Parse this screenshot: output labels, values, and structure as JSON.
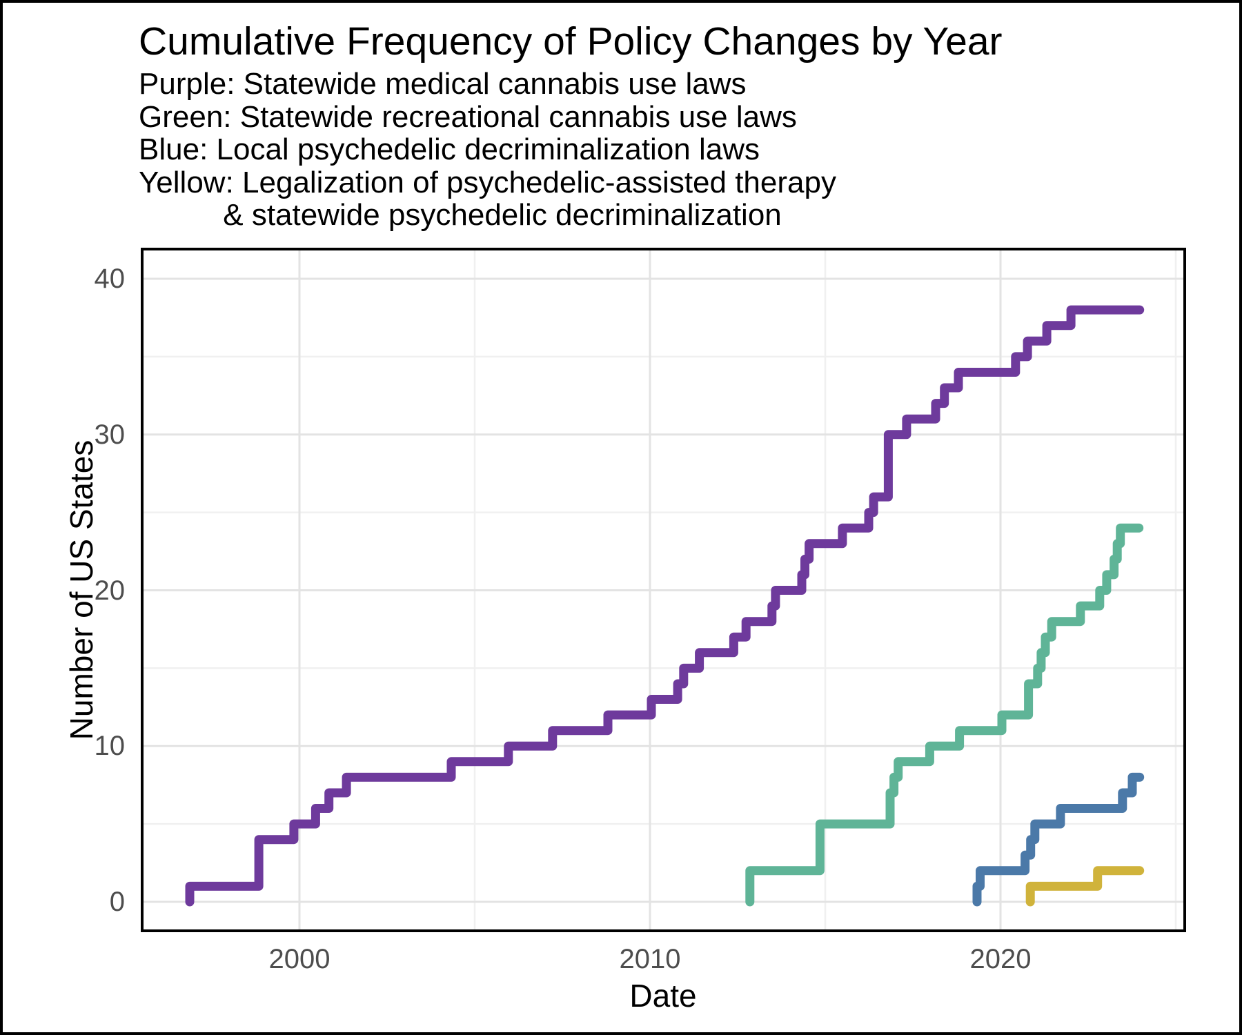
{
  "title": "Cumulative Frequency of Policy Changes by Year",
  "subtitle_lines": [
    "Purple: Statewide medical cannabis use laws",
    "Green: Statewide recreational cannabis use laws",
    "Blue: Local psychedelic decriminalization laws",
    "Yellow: Legalization of psychedelic-assisted therapy",
    "          & statewide psychedelic decriminalization"
  ],
  "colors": {
    "purple": "#6E3A9C",
    "green": "#5FB497",
    "blue": "#4B79A8",
    "yellow": "#D0B33B",
    "grid_major": "#E3E3E3",
    "grid_minor": "#F0F0F0",
    "axis_text": "#4D4D4D",
    "panel_border": "#000000"
  },
  "chart_data": {
    "type": "line",
    "subtype": "cumulative-step",
    "title": "Cumulative Frequency of Policy Changes by Year",
    "xlabel": "Date",
    "ylabel": "Number of US States",
    "xlim": [
      1995.5,
      2025.3
    ],
    "ylim": [
      -1.9,
      41.9
    ],
    "x_ticks": [
      2000,
      2010,
      2020
    ],
    "x_minor_gridlines": [
      2005,
      2015,
      2025
    ],
    "y_ticks": [
      0,
      10,
      20,
      30,
      40
    ],
    "y_minor_gridlines": [
      5,
      15,
      25,
      35
    ],
    "grid": "on",
    "legend_position": "in-subtitle",
    "series": [
      {
        "id": "medical-cannabis",
        "name": "Statewide medical cannabis use laws",
        "color_label": "Purple",
        "color": "#6E3A9C",
        "starts_at_zero_year": 1996.87,
        "end_year": 2023.97,
        "final_value": 38,
        "steps": [
          [
            1996.87,
            1
          ],
          [
            1998.84,
            4
          ],
          [
            1999.84,
            5
          ],
          [
            2000.46,
            6
          ],
          [
            2000.84,
            7
          ],
          [
            2001.34,
            8
          ],
          [
            2004.33,
            9
          ],
          [
            2005.96,
            10
          ],
          [
            2007.22,
            11
          ],
          [
            2008.8,
            12
          ],
          [
            2010.04,
            13
          ],
          [
            2010.79,
            14
          ],
          [
            2010.96,
            15
          ],
          [
            2011.41,
            16
          ],
          [
            2012.39,
            17
          ],
          [
            2012.74,
            18
          ],
          [
            2013.48,
            19
          ],
          [
            2013.58,
            20
          ],
          [
            2014.33,
            21
          ],
          [
            2014.42,
            22
          ],
          [
            2014.54,
            23
          ],
          [
            2015.49,
            24
          ],
          [
            2016.24,
            25
          ],
          [
            2016.38,
            26
          ],
          [
            2016.8,
            30
          ],
          [
            2017.32,
            31
          ],
          [
            2018.15,
            32
          ],
          [
            2018.4,
            33
          ],
          [
            2018.8,
            34
          ],
          [
            2020.43,
            35
          ],
          [
            2020.77,
            36
          ],
          [
            2021.32,
            37
          ],
          [
            2022.01,
            38
          ]
        ]
      },
      {
        "id": "recreational-cannabis",
        "name": "Statewide recreational cannabis use laws",
        "color_label": "Green",
        "color": "#5FB497",
        "starts_at_zero_year": 2012.85,
        "end_year": 2023.95,
        "final_value": 24,
        "steps": [
          [
            2012.85,
            2
          ],
          [
            2014.85,
            5
          ],
          [
            2016.85,
            7
          ],
          [
            2016.96,
            8
          ],
          [
            2017.08,
            9
          ],
          [
            2017.98,
            10
          ],
          [
            2018.83,
            11
          ],
          [
            2020.04,
            12
          ],
          [
            2020.8,
            14
          ],
          [
            2021.06,
            15
          ],
          [
            2021.16,
            16
          ],
          [
            2021.28,
            17
          ],
          [
            2021.46,
            18
          ],
          [
            2022.28,
            19
          ],
          [
            2022.83,
            20
          ],
          [
            2023.03,
            21
          ],
          [
            2023.24,
            22
          ],
          [
            2023.33,
            23
          ],
          [
            2023.42,
            24
          ]
        ]
      },
      {
        "id": "local-psychedelic-decrim",
        "name": "Local psychedelic decriminalization laws",
        "color_label": "Blue",
        "color": "#4B79A8",
        "starts_at_zero_year": 2019.33,
        "end_year": 2023.97,
        "final_value": 8,
        "steps": [
          [
            2019.33,
            1
          ],
          [
            2019.42,
            2
          ],
          [
            2020.7,
            3
          ],
          [
            2020.86,
            4
          ],
          [
            2020.98,
            5
          ],
          [
            2021.71,
            6
          ],
          [
            2023.48,
            7
          ],
          [
            2023.76,
            8
          ]
        ]
      },
      {
        "id": "psychedelic-therapy-statewide-decrim",
        "name": "Legalization of psychedelic-assisted therapy & statewide psychedelic decriminalization",
        "color_label": "Yellow",
        "color": "#D0B33B",
        "starts_at_zero_year": 2020.85,
        "end_year": 2023.97,
        "final_value": 2,
        "steps": [
          [
            2020.85,
            1
          ],
          [
            2022.77,
            2
          ]
        ]
      }
    ]
  }
}
